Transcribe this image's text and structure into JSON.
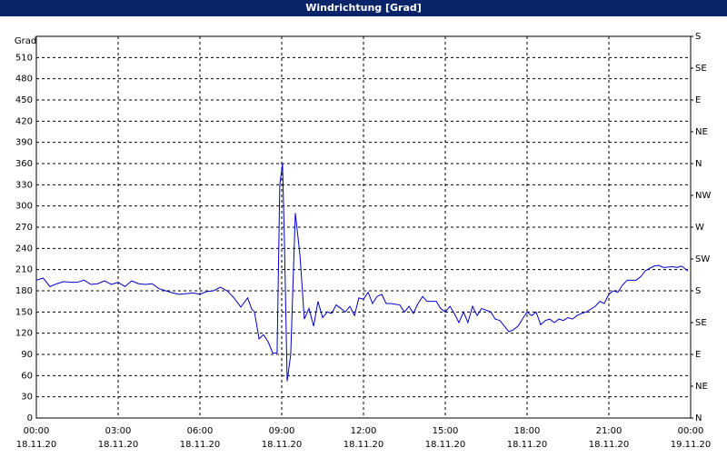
{
  "window_title": "Windrichtung [Grad]",
  "chart_data": {
    "type": "line",
    "y_axis_label": "Grad",
    "x": [
      0,
      0.25,
      0.5,
      0.75,
      1,
      1.25,
      1.5,
      1.75,
      2,
      2.25,
      2.5,
      2.75,
      3,
      3.25,
      3.5,
      3.75,
      4,
      4.25,
      4.5,
      4.75,
      5,
      5.25,
      5.5,
      5.75,
      6,
      6.25,
      6.5,
      6.75,
      7,
      7.25,
      7.5,
      7.75,
      7.9,
      8,
      8.17,
      8.33,
      8.5,
      8.67,
      8.83,
      8.93,
      9.03,
      9.1,
      9.2,
      9.33,
      9.5,
      9.67,
      9.83,
      10,
      10.17,
      10.33,
      10.5,
      10.67,
      10.83,
      11,
      11.17,
      11.33,
      11.5,
      11.67,
      11.83,
      12,
      12.17,
      12.33,
      12.5,
      12.67,
      12.83,
      13,
      13.33,
      13.5,
      13.67,
      13.83,
      14,
      14.17,
      14.33,
      14.67,
      14.83,
      15,
      15.17,
      15.33,
      15.5,
      15.67,
      15.83,
      16,
      16.17,
      16.33,
      16.67,
      16.83,
      17,
      17.17,
      17.33,
      17.5,
      17.67,
      17.83,
      18,
      18.17,
      18.33,
      18.5,
      18.67,
      18.83,
      19,
      19.17,
      19.33,
      19.5,
      19.67,
      19.83,
      20,
      20.17,
      20.5,
      20.67,
      20.83,
      21,
      21.17,
      21.33,
      21.5,
      21.67,
      22,
      22.17,
      22.33,
      22.5,
      22.67,
      22.83,
      23,
      23.33,
      23.5,
      23.67,
      23.83,
      23.9
    ],
    "series": [
      {
        "name": "Windrichtung",
        "color": "#0000c8",
        "values": [
          195,
          198,
          186,
          190,
          193,
          192,
          192,
          195,
          189,
          190,
          194,
          189,
          192,
          186,
          194,
          190,
          189,
          190,
          183,
          180,
          177,
          175,
          176,
          177,
          175,
          179,
          180,
          185,
          180,
          170,
          157,
          170,
          154,
          150,
          112,
          118,
          108,
          92,
          92,
          330,
          360,
          250,
          52,
          90,
          290,
          230,
          140,
          155,
          130,
          165,
          142,
          150,
          148,
          160,
          155,
          150,
          158,
          145,
          170,
          168,
          178,
          162,
          172,
          175,
          162,
          162,
          160,
          150,
          158,
          148,
          162,
          172,
          165,
          165,
          155,
          150,
          158,
          148,
          135,
          150,
          135,
          158,
          145,
          155,
          150,
          140,
          138,
          130,
          122,
          125,
          130,
          140,
          150,
          145,
          150,
          132,
          138,
          140,
          135,
          140,
          138,
          142,
          140,
          145,
          148,
          150,
          158,
          165,
          162,
          175,
          180,
          178,
          188,
          195,
          195,
          200,
          208,
          212,
          215,
          216,
          213,
          214,
          213,
          215,
          210,
          208
        ]
      }
    ],
    "xlim": [
      0,
      24
    ],
    "xticks": [
      {
        "value": 0,
        "label": "00:00"
      },
      {
        "value": 3,
        "label": "03:00"
      },
      {
        "value": 6,
        "label": "06:00"
      },
      {
        "value": 9,
        "label": "09:00"
      },
      {
        "value": 12,
        "label": "12:00"
      },
      {
        "value": 15,
        "label": "15:00"
      },
      {
        "value": 18,
        "label": "18:00"
      },
      {
        "value": 21,
        "label": "21:00"
      },
      {
        "value": 24,
        "label": "00:00"
      }
    ],
    "xtick_dates": [
      "18.11.20",
      "18.11.20",
      "18.11.20",
      "18.11.20",
      "18.11.20",
      "18.11.20",
      "18.11.20",
      "18.11.20",
      "19.11.20"
    ],
    "ylim": [
      0,
      540
    ],
    "yticks": [
      0,
      30,
      60,
      90,
      120,
      150,
      180,
      210,
      240,
      270,
      300,
      330,
      360,
      390,
      420,
      450,
      480,
      510
    ],
    "y2lim": [
      0,
      540
    ],
    "y2ticks": [
      {
        "value": 0,
        "label": "N"
      },
      {
        "value": 45,
        "label": "NE"
      },
      {
        "value": 90,
        "label": "E"
      },
      {
        "value": 135,
        "label": "SE"
      },
      {
        "value": 180,
        "label": "S"
      },
      {
        "value": 225,
        "label": "SW"
      },
      {
        "value": 270,
        "label": "W"
      },
      {
        "value": 315,
        "label": "NW"
      },
      {
        "value": 360,
        "label": "N"
      },
      {
        "value": 405,
        "label": "NE"
      },
      {
        "value": 450,
        "label": "E"
      },
      {
        "value": 495,
        "label": "SE"
      },
      {
        "value": 540,
        "label": "S"
      }
    ],
    "grid": true
  }
}
